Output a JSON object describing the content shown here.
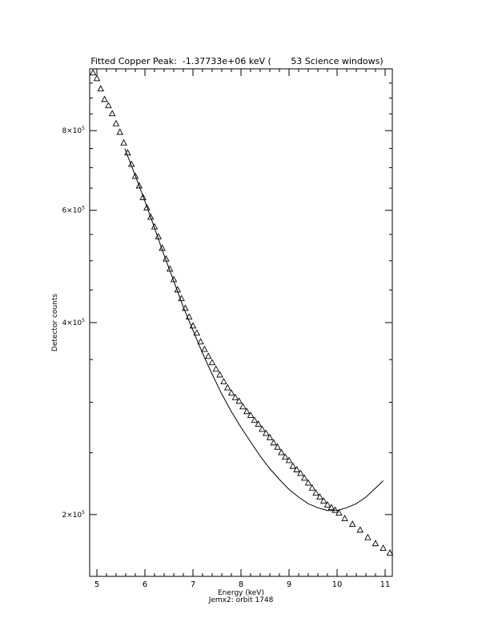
{
  "chart_data": {
    "type": "scatter",
    "title": "Fitted Copper Peak:  -1.37733e+06 keV (       53 Science windows)",
    "xlabel": "Energy (keV)",
    "subtitle": "Jemx2: orbit 1748",
    "ylabel": "Detector counts",
    "xlim": [
      4.85,
      11.15
    ],
    "ylim": [
      160000,
      1000000
    ],
    "log_y": true,
    "grid": false,
    "x_ticks": [
      5,
      6,
      7,
      8,
      9,
      10,
      11
    ],
    "x_tick_labels": [
      "5",
      "6",
      "7",
      "8",
      "9",
      "10",
      "11"
    ],
    "y_ticks": [
      200000,
      400000,
      600000,
      800000
    ],
    "y_tick_labels": [
      {
        "mant": "2×10",
        "exp": "5"
      },
      {
        "mant": "4×10",
        "exp": "5"
      },
      {
        "mant": "6×10",
        "exp": "5"
      },
      {
        "mant": "8×10",
        "exp": "5"
      }
    ],
    "series": [
      {
        "style": "triangle",
        "x": [
          4.92,
          5.0,
          5.08,
          5.16,
          5.24,
          5.32,
          5.4,
          5.48,
          5.56,
          5.64,
          5.72,
          5.8,
          5.88,
          5.96,
          6.04,
          6.12,
          6.2,
          6.28,
          6.36,
          6.44,
          6.52,
          6.6,
          6.68,
          6.76,
          6.84,
          6.92,
          7.0,
          7.08,
          7.16,
          7.24,
          7.32,
          7.4,
          7.48,
          7.56,
          7.64,
          7.72,
          7.8,
          7.88,
          7.96,
          8.04,
          8.12,
          8.2,
          8.28,
          8.36,
          8.44,
          8.52,
          8.6,
          8.68,
          8.76,
          8.84,
          8.92,
          9.0,
          9.08,
          9.16,
          9.24,
          9.32,
          9.4,
          9.48,
          9.56,
          9.64,
          9.72,
          9.8,
          9.88,
          9.96,
          10.04,
          10.16,
          10.32,
          10.48,
          10.64,
          10.8,
          10.96,
          11.1
        ],
        "y": [
          985000,
          965000,
          930000,
          895000,
          875000,
          850000,
          820000,
          795000,
          765000,
          738000,
          708000,
          678000,
          655000,
          628000,
          605000,
          585000,
          565000,
          545000,
          523000,
          503000,
          485000,
          467000,
          450000,
          436000,
          421000,
          408000,
          395000,
          385000,
          373000,
          363000,
          354000,
          346000,
          338000,
          331000,
          323000,
          316000,
          310000,
          305000,
          301000,
          295000,
          290000,
          286000,
          281000,
          277000,
          272000,
          268000,
          264000,
          259000,
          255000,
          250000,
          246000,
          243000,
          238000,
          235000,
          232000,
          228000,
          224000,
          220000,
          216000,
          213000,
          210000,
          207000,
          205000,
          203000,
          201000,
          197000,
          193000,
          189000,
          184000,
          180000,
          177000,
          174000
        ]
      },
      {
        "style": "line",
        "x": [
          5.58,
          5.8,
          6.0,
          6.2,
          6.4,
          6.6,
          6.8,
          7.0,
          7.2,
          7.4,
          7.6,
          7.8,
          8.0,
          8.2,
          8.4,
          8.6,
          8.8,
          9.0,
          9.2,
          9.4,
          9.6,
          9.8,
          10.0,
          10.2,
          10.4,
          10.6,
          10.8,
          10.96
        ],
        "y": [
          750000,
          680000,
          620000,
          563000,
          510000,
          465000,
          423000,
          389000,
          358000,
          332000,
          309000,
          290000,
          274000,
          260000,
          247000,
          236000,
          227000,
          219000,
          213000,
          208000,
          205000,
          203000,
          203000,
          205000,
          208000,
          213000,
          220000,
          226000
        ]
      }
    ]
  }
}
